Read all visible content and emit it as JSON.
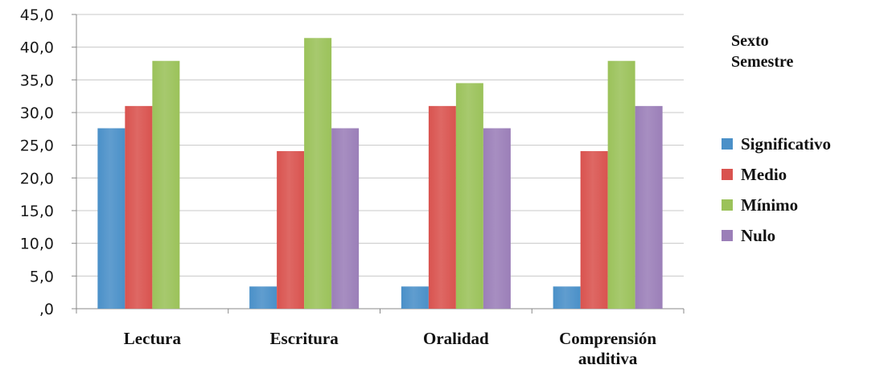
{
  "chart_data": {
    "type": "bar",
    "title": "",
    "xlabel": "",
    "ylabel": "",
    "ylim": [
      0,
      45
    ],
    "yticks": [
      ",0",
      "5,0",
      "10,0",
      "15,0",
      "20,0",
      "25,0",
      "30,0",
      "35,0",
      "40,0",
      "45,0"
    ],
    "grid": true,
    "legend_position": "right",
    "legend_title": [
      "Sexto",
      "Semestre"
    ],
    "categories": [
      [
        "Lectura"
      ],
      [
        "Escritura"
      ],
      [
        "Oralidad"
      ],
      [
        "Comprensión",
        "auditiva"
      ]
    ],
    "series": [
      {
        "name": "Significativo",
        "color": "#4a90c8",
        "values": [
          27.6,
          3.4,
          3.4,
          3.4
        ]
      },
      {
        "name": "Medio",
        "color": "#d9534f",
        "values": [
          31.0,
          24.1,
          31.0,
          24.1
        ]
      },
      {
        "name": "Mínimo",
        "color": "#9bc25a",
        "values": [
          37.9,
          41.4,
          34.5,
          37.9
        ]
      },
      {
        "name": "Nulo",
        "color": "#9b7fb8",
        "values": [
          0,
          27.6,
          27.6,
          31.0
        ]
      }
    ]
  }
}
